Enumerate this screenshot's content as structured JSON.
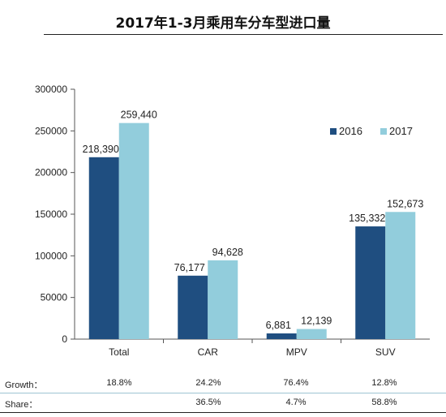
{
  "title": "2017年1-3月乘用车分车型进口量",
  "chart_data": {
    "type": "bar",
    "categories": [
      "Total",
      "CAR",
      "MPV",
      "SUV"
    ],
    "series": [
      {
        "name": "2016",
        "values": [
          218390,
          76177,
          6881,
          135332
        ],
        "labels": [
          "218,390",
          "76,177",
          "6,881",
          "135,332"
        ]
      },
      {
        "name": "2017",
        "values": [
          259440,
          94628,
          12139,
          152673
        ],
        "labels": [
          "259,440",
          "94,628",
          "12,139",
          "152,673"
        ]
      }
    ],
    "colors": {
      "2016": "#1f4e80",
      "2017": "#92cddc"
    },
    "ylim": [
      0,
      300000
    ],
    "yticks": [
      "0",
      "50000",
      "100000",
      "150000",
      "200000",
      "250000",
      "300000"
    ],
    "ytick_values": [
      0,
      50000,
      100000,
      150000,
      200000,
      250000,
      300000
    ],
    "legend_position": "top-right",
    "grid": false
  },
  "stats": {
    "growth": {
      "label": "Growth：",
      "values": [
        "18.8%",
        "24.2%",
        "76.4%",
        "12.8%"
      ]
    },
    "share": {
      "label": "Share：",
      "values": [
        "",
        "36.5%",
        "4.7%",
        "58.8%"
      ]
    }
  }
}
